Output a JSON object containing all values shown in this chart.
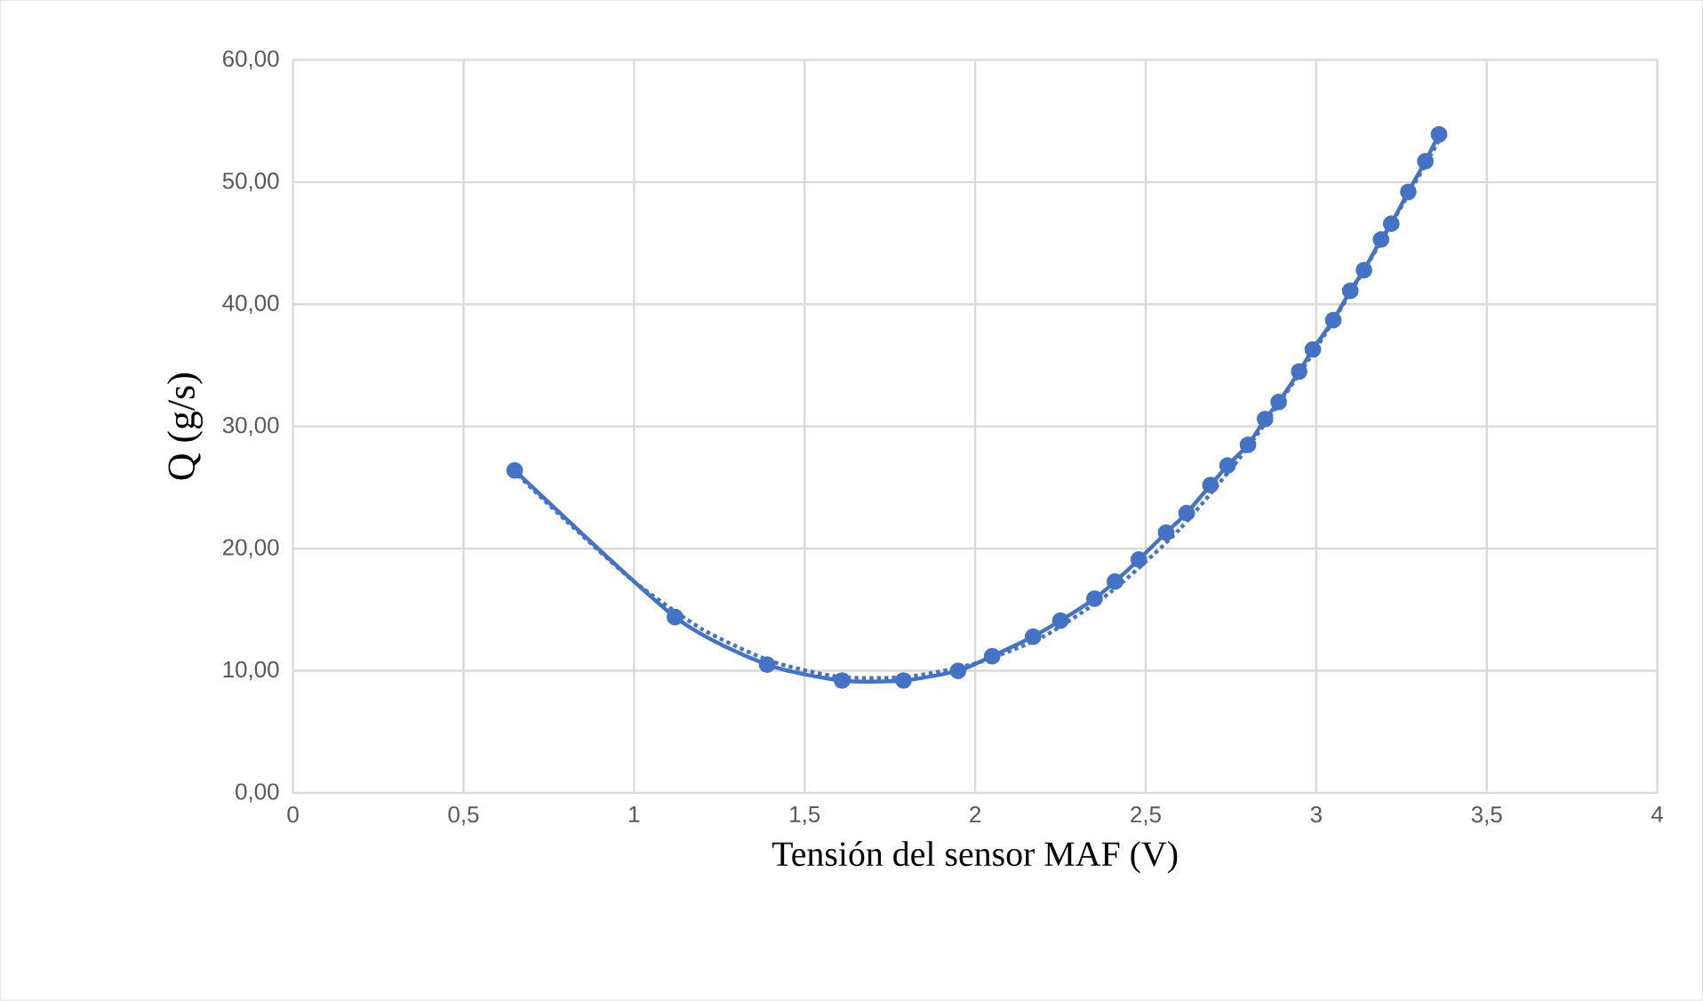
{
  "chart_data": {
    "type": "line",
    "xlabel": "Tensión del sensor MAF (V)",
    "ylabel": "Q (g/s)",
    "xlim": [
      0,
      4
    ],
    "xticks": [
      0,
      {
        "value": 0.5,
        "label": "0,5"
      },
      1,
      {
        "value": 1.5,
        "label": "1,5"
      },
      2,
      {
        "value": 2.5,
        "label": "2,5"
      },
      3,
      {
        "value": 3.5,
        "label": "3,5"
      },
      4
    ],
    "ylim": [
      0,
      60
    ],
    "yticks": [
      {
        "value": 0,
        "label": "0,00"
      },
      {
        "value": 10,
        "label": "10,00"
      },
      {
        "value": 20,
        "label": "20,00"
      },
      {
        "value": 30,
        "label": "30,00"
      },
      {
        "value": 40,
        "label": "40,00"
      },
      {
        "value": 50,
        "label": "50,00"
      },
      {
        "value": 60,
        "label": "60,00"
      }
    ],
    "grid": true,
    "series": [
      {
        "color": "#4472c4",
        "marker": "circle",
        "line_style": "solid",
        "x": [
          0.65,
          1.12,
          1.39,
          1.61,
          1.79,
          1.95,
          2.05,
          2.17,
          2.25,
          2.35,
          2.41,
          2.48,
          2.56,
          2.62,
          2.69,
          2.74,
          2.8,
          2.85,
          2.89,
          2.95,
          2.99,
          3.05,
          3.1,
          3.14,
          3.19,
          3.22,
          3.27,
          3.32,
          3.36
        ],
        "values": [
          26.4,
          14.4,
          10.5,
          9.2,
          9.2,
          10.0,
          11.2,
          12.8,
          14.1,
          15.9,
          17.3,
          19.1,
          21.3,
          22.9,
          25.2,
          26.8,
          28.5,
          30.6,
          32.0,
          34.5,
          36.3,
          38.7,
          41.1,
          42.8,
          45.3,
          46.6,
          49.2,
          51.7,
          53.9
        ]
      },
      {
        "type": "line",
        "color": "#4472c4",
        "marker": "none",
        "line_style": "dotted",
        "x": [
          0.66,
          0.8,
          1.0,
          1.2,
          1.4,
          1.6,
          1.8,
          2.0,
          2.2,
          2.4,
          2.6,
          2.8,
          3.0,
          3.2,
          3.37
        ],
        "values": [
          26.0,
          22.3,
          17.3,
          13.4,
          10.8,
          9.5,
          9.5,
          10.6,
          12.8,
          16.5,
          21.6,
          28.3,
          36.4,
          45.6,
          53.9
        ]
      }
    ]
  }
}
